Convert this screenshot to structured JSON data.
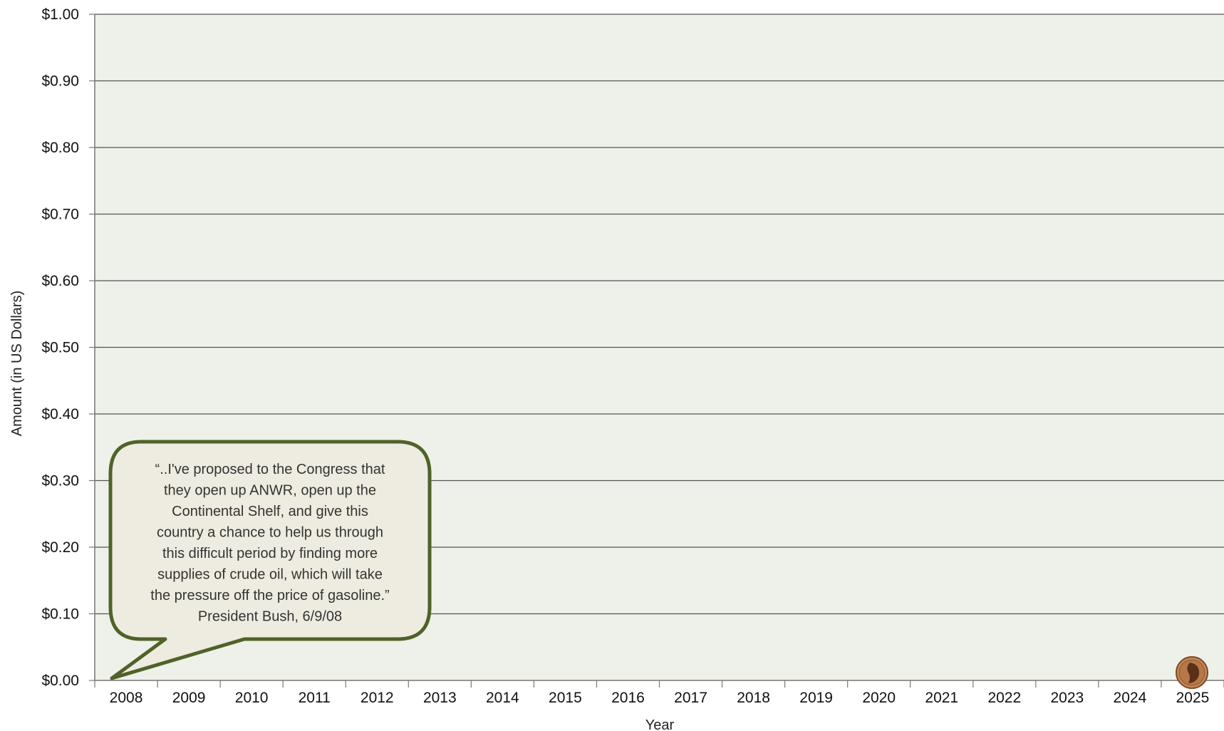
{
  "chart_data": {
    "type": "line",
    "title": "",
    "xlabel": "Year",
    "ylabel": "Amount (in US Dollars)",
    "x": [
      "2008",
      "2009",
      "2010",
      "2011",
      "2012",
      "2013",
      "2014",
      "2015",
      "2016",
      "2017",
      "2018",
      "2019",
      "2020",
      "2021",
      "2022",
      "2023",
      "2024",
      "2025"
    ],
    "y_ticks": [
      "$0.00",
      "$0.10",
      "$0.20",
      "$0.30",
      "$0.40",
      "$0.50",
      "$0.60",
      "$0.70",
      "$0.80",
      "$0.90",
      "$1.00"
    ],
    "ylim": [
      0,
      1.0
    ],
    "grid": true,
    "series": [],
    "annotations": [
      {
        "lines": [
          "“..I've proposed to the Congress that",
          "they open up ANWR, open up the",
          "Continental Shelf, and give this",
          "country a chance to help us through",
          "this difficult period by finding more",
          "supplies of crude oil, which will take",
          "the pressure off the price of gasoline.”",
          "President Bush, 6/9/08"
        ],
        "points_to": {
          "x": "2008",
          "y": 0
        }
      }
    ],
    "marker": {
      "icon": "penny-coin-icon",
      "x": "2025",
      "y": 0
    },
    "colors": {
      "plot_background": "#EEF1E9",
      "gridline": "#555555",
      "bubble_border": "#4F6228",
      "bubble_fill": "#EEECE1",
      "highlight_tick": "#777777"
    },
    "highlight_x": "2011"
  }
}
